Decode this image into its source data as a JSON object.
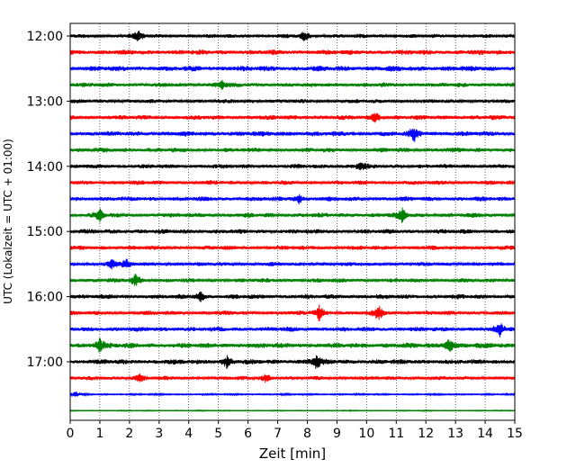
{
  "chart_data": {
    "type": "line",
    "title": "",
    "xlabel": "Zeit  [min]",
    "ylabel": "UTC (Lokalzeit = UTC + 01:00)",
    "xlim": [
      0,
      15
    ],
    "x_ticks": [
      "0",
      "1",
      "2",
      "3",
      "4",
      "5",
      "6",
      "7",
      "8",
      "9",
      "10",
      "11",
      "12",
      "13",
      "14",
      "15"
    ],
    "y_ticks": [
      {
        "label": "12:00",
        "row": 0
      },
      {
        "label": "13:00",
        "row": 4
      },
      {
        "label": "14:00",
        "row": 8
      },
      {
        "label": "15:00",
        "row": 12
      },
      {
        "label": "16:00",
        "row": 16
      },
      {
        "label": "17:00",
        "row": 20
      }
    ],
    "row_interval_minutes": 15,
    "row_count": 24,
    "trace_colors": [
      "#000000",
      "#ff0000",
      "#0000ff",
      "#008000"
    ],
    "vertical_grid": "dotted",
    "trace_end_minutes": [
      15,
      15,
      15,
      15,
      15,
      15,
      15,
      15,
      15,
      15,
      15,
      15,
      15,
      15,
      15,
      15,
      15,
      15,
      15,
      15,
      15,
      15,
      15,
      15
    ],
    "amplitude_levels": [
      0.55,
      0.7,
      0.75,
      0.6,
      0.55,
      0.65,
      0.7,
      0.65,
      0.6,
      0.6,
      0.65,
      0.65,
      0.65,
      0.6,
      0.55,
      0.6,
      0.65,
      0.6,
      0.65,
      0.75,
      0.7,
      0.55,
      0.25,
      0.15
    ],
    "events": [
      {
        "row": 0,
        "minute": 2.3,
        "amp": 1.6
      },
      {
        "row": 0,
        "minute": 7.9,
        "amp": 1.4
      },
      {
        "row": 3,
        "minute": 5.1,
        "amp": 1.3
      },
      {
        "row": 5,
        "minute": 10.3,
        "amp": 1.2
      },
      {
        "row": 6,
        "minute": 11.6,
        "amp": 1.6
      },
      {
        "row": 8,
        "minute": 9.8,
        "amp": 1.2
      },
      {
        "row": 10,
        "minute": 7.7,
        "amp": 1.1
      },
      {
        "row": 11,
        "minute": 1.0,
        "amp": 1.4
      },
      {
        "row": 11,
        "minute": 11.2,
        "amp": 1.5
      },
      {
        "row": 14,
        "minute": 1.4,
        "amp": 1.5
      },
      {
        "row": 14,
        "minute": 1.9,
        "amp": 1.2
      },
      {
        "row": 15,
        "minute": 2.2,
        "amp": 1.5
      },
      {
        "row": 16,
        "minute": 4.4,
        "amp": 1.3
      },
      {
        "row": 17,
        "minute": 8.4,
        "amp": 2.0
      },
      {
        "row": 17,
        "minute": 10.4,
        "amp": 1.9
      },
      {
        "row": 18,
        "minute": 14.5,
        "amp": 1.6
      },
      {
        "row": 19,
        "minute": 1.0,
        "amp": 1.5
      },
      {
        "row": 19,
        "minute": 12.8,
        "amp": 1.6
      },
      {
        "row": 20,
        "minute": 5.3,
        "amp": 1.4
      },
      {
        "row": 20,
        "minute": 8.3,
        "amp": 1.5
      },
      {
        "row": 21,
        "minute": 2.3,
        "amp": 1.4
      },
      {
        "row": 21,
        "minute": 6.6,
        "amp": 1.3
      },
      {
        "row": 22,
        "minute": 0.2,
        "amp": 1.6
      }
    ]
  }
}
